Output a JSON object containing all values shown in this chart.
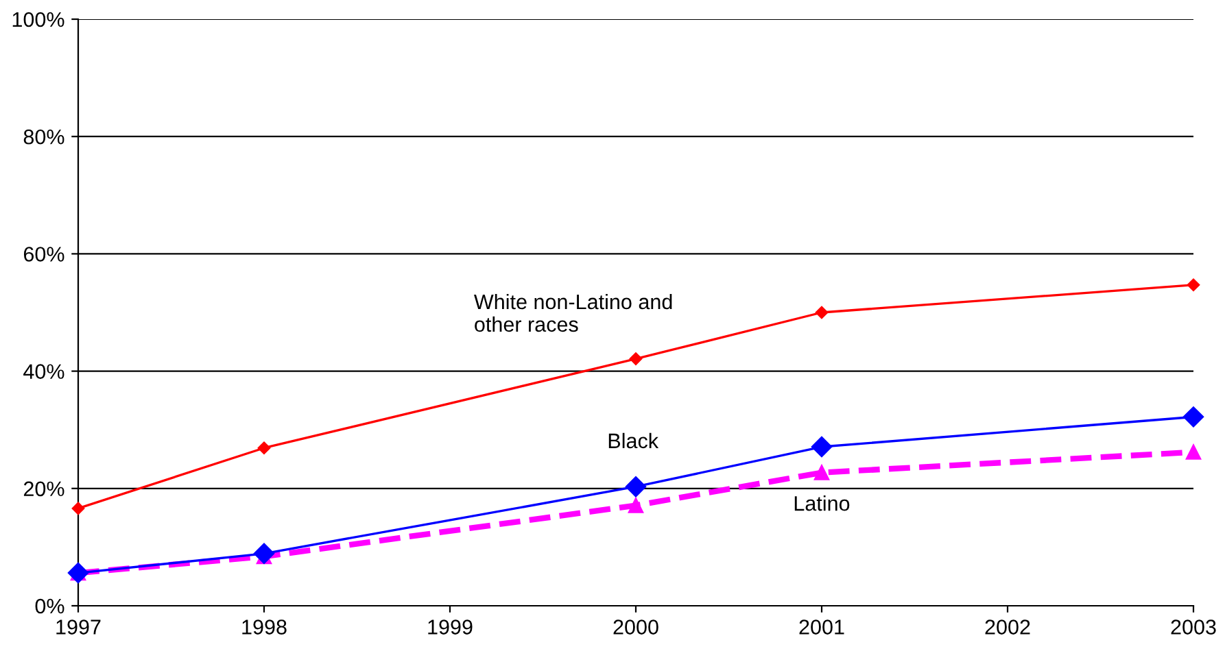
{
  "chart_data": {
    "type": "line",
    "x": [
      1997,
      1998,
      2000,
      2001,
      2003
    ],
    "xlim": [
      1997,
      2003
    ],
    "xticks": [
      1997,
      1998,
      1999,
      2000,
      2001,
      2002,
      2003
    ],
    "ylim": [
      0,
      100
    ],
    "yticks": [
      {
        "value": 0,
        "label": "0%"
      },
      {
        "value": 20,
        "label": "20%"
      },
      {
        "value": 40,
        "label": "40%"
      },
      {
        "value": 60,
        "label": "60%"
      },
      {
        "value": 80,
        "label": "80%"
      },
      {
        "value": 100,
        "label": "100%"
      }
    ],
    "grid": "y",
    "legend": false,
    "series": [
      {
        "name": "White non-Latino and\nother races",
        "color": "#ff0000",
        "marker": "diamond",
        "line_style": "solid",
        "values": [
          16.6,
          26.9,
          42.1,
          50.0,
          54.7
        ]
      },
      {
        "name": "Black",
        "color": "#0000ff",
        "marker": "diamond",
        "line_style": "solid",
        "values": [
          5.6,
          8.9,
          20.3,
          27.1,
          32.2
        ]
      },
      {
        "name": "Latino",
        "color": "#ff00ff",
        "marker": "triangle",
        "line_style": "dashed",
        "values": [
          5.6,
          8.4,
          17.1,
          22.7,
          26.2
        ]
      }
    ]
  }
}
